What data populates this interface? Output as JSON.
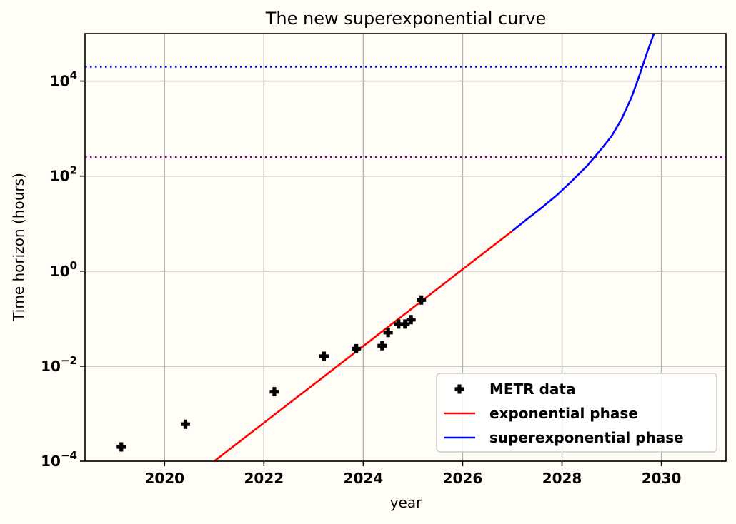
{
  "chart_data": {
    "type": "scatter",
    "title": "The new superexponential curve",
    "xlabel": "year",
    "ylabel": "Time horizon (hours)",
    "xlim": [
      2018.4,
      2031.3
    ],
    "ylim_log10": [
      -4,
      5
    ],
    "yscale": "log",
    "grid": true,
    "x_ticks": [
      2020,
      2022,
      2024,
      2026,
      2028,
      2030
    ],
    "y_ticks": [
      {
        "exp": -4,
        "base": "10",
        "exp_label": "−4"
      },
      {
        "exp": -2,
        "base": "10",
        "exp_label": "−2"
      },
      {
        "exp": 0,
        "base": "10",
        "exp_label": "0"
      },
      {
        "exp": 2,
        "base": "10",
        "exp_label": "2"
      },
      {
        "exp": 4,
        "base": "10",
        "exp_label": "4"
      }
    ],
    "reference_lines": [
      {
        "name": "blue-dotted-line",
        "y": 20000,
        "color": "#0000ff"
      },
      {
        "name": "purple-dotted-line",
        "y": 250,
        "color": "#800080"
      }
    ],
    "series": [
      {
        "name": "METR data",
        "kind": "points",
        "color": "#000000",
        "points": [
          {
            "x": 2019.13,
            "y": 0.0002
          },
          {
            "x": 2020.42,
            "y": 0.0006
          },
          {
            "x": 2022.21,
            "y": 0.0029
          },
          {
            "x": 2023.21,
            "y": 0.0162
          },
          {
            "x": 2023.86,
            "y": 0.0234
          },
          {
            "x": 2024.38,
            "y": 0.0269
          },
          {
            "x": 2024.5,
            "y": 0.051
          },
          {
            "x": 2024.71,
            "y": 0.0769
          },
          {
            "x": 2024.84,
            "y": 0.0769
          },
          {
            "x": 2024.96,
            "y": 0.0953
          },
          {
            "x": 2025.17,
            "y": 0.2462
          }
        ]
      },
      {
        "name": "exponential phase",
        "kind": "line",
        "color": "#ff0000",
        "points": [
          {
            "x": 2021.0,
            "y": 0.0001
          },
          {
            "x": 2027.0,
            "y": 7.0
          }
        ]
      },
      {
        "name": "superexponential phase",
        "kind": "line",
        "color": "#0000ff",
        "points": [
          {
            "x": 2027.0,
            "y": 7.0
          },
          {
            "x": 2027.3,
            "y": 12.5
          },
          {
            "x": 2027.6,
            "y": 22.0
          },
          {
            "x": 2027.9,
            "y": 40.0
          },
          {
            "x": 2028.2,
            "y": 79.0
          },
          {
            "x": 2028.5,
            "y": 162.0
          },
          {
            "x": 2028.8,
            "y": 380.0
          },
          {
            "x": 2029.0,
            "y": 700.0
          },
          {
            "x": 2029.2,
            "y": 1600.0
          },
          {
            "x": 2029.4,
            "y": 4600.0
          },
          {
            "x": 2029.55,
            "y": 12500.0
          },
          {
            "x": 2029.7,
            "y": 37000.0
          },
          {
            "x": 2029.85,
            "y": 100000.0
          }
        ]
      }
    ],
    "legend": {
      "position": "lower-right",
      "entries": [
        {
          "label": "METR data",
          "color": "#000000",
          "kind": "marker"
        },
        {
          "label": "exponential phase",
          "color": "#ff0000",
          "kind": "line"
        },
        {
          "label": "superexponential phase",
          "color": "#0000ff",
          "kind": "line"
        }
      ]
    }
  }
}
